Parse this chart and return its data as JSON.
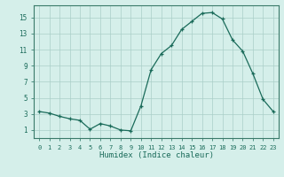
{
  "x": [
    0,
    1,
    2,
    3,
    4,
    5,
    6,
    7,
    8,
    9,
    10,
    11,
    12,
    13,
    14,
    15,
    16,
    17,
    18,
    19,
    20,
    21,
    22,
    23
  ],
  "y": [
    3.3,
    3.1,
    2.7,
    2.4,
    2.2,
    1.1,
    1.8,
    1.5,
    1.0,
    0.9,
    4.0,
    8.5,
    10.5,
    11.5,
    13.5,
    14.5,
    15.5,
    15.6,
    14.8,
    12.2,
    10.8,
    8.0,
    4.8,
    3.3
  ],
  "xlabel": "Humidex (Indice chaleur)",
  "xlim": [
    -0.5,
    23.5
  ],
  "ylim": [
    0,
    16.5
  ],
  "yticks": [
    1,
    3,
    5,
    7,
    9,
    11,
    13,
    15
  ],
  "xticks": [
    0,
    1,
    2,
    3,
    4,
    5,
    6,
    7,
    8,
    9,
    10,
    11,
    12,
    13,
    14,
    15,
    16,
    17,
    18,
    19,
    20,
    21,
    22,
    23
  ],
  "line_color": "#1a6b5a",
  "marker": "+",
  "bg_color": "#d5efea",
  "grid_color": "#aacfc8",
  "spine_color": "#3a7a6a",
  "tick_color": "#1a6b5a",
  "label_color": "#1a6b5a"
}
